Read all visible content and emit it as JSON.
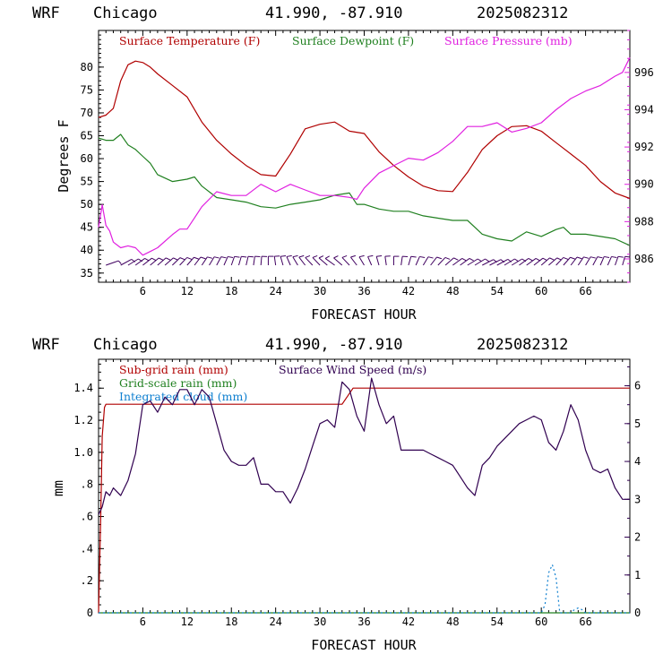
{
  "header": {
    "model": "WRF",
    "location": "Chicago",
    "coords": "41.990, -87.910",
    "run": "2025082312"
  },
  "colors": {
    "temperature": "#b00000",
    "dewpoint": "#208020",
    "pressure": "#e020e0",
    "wind_barbs": "#400060",
    "subgrid": "#b00000",
    "gridscale": "#208020",
    "cloud": "#1080d0",
    "windspeed": "#300050"
  },
  "chart_data": [
    {
      "type": "line",
      "xlabel": "FORECAST HOUR",
      "ylabel": "Degrees F",
      "x_ticks": [
        "6",
        "12",
        "18",
        "24",
        "30",
        "36",
        "42",
        "48",
        "54",
        "60",
        "66"
      ],
      "y_ticks": [
        "35",
        "40",
        "45",
        "50",
        "55",
        "60",
        "65",
        "70",
        "75",
        "80"
      ],
      "y2_ticks": [
        "986",
        "988",
        "990",
        "992",
        "994",
        "996"
      ],
      "xlim": [
        0,
        72
      ],
      "ylim": [
        33,
        88
      ],
      "y2lim": [
        984.75,
        998.25
      ],
      "legend": [
        "Surface Temperature (F)",
        "Surface Dewpoint (F)",
        "Surface Pressure (mb)"
      ],
      "series": [
        {
          "name": "Surface Temperature (F)",
          "axis": "left",
          "x": [
            0,
            1,
            2,
            3,
            4,
            5,
            6,
            7,
            8,
            10,
            12,
            14,
            16,
            18,
            20,
            22,
            24,
            26,
            28,
            30,
            32,
            34,
            36,
            38,
            40,
            42,
            44,
            46,
            48,
            50,
            52,
            54,
            56,
            58,
            60,
            62,
            64,
            66,
            68,
            70,
            72
          ],
          "y": [
            69,
            69.5,
            71,
            77,
            80.5,
            81.3,
            81,
            80,
            78.5,
            76,
            73.5,
            68,
            64,
            61,
            58.5,
            56.5,
            56.2,
            61,
            66.5,
            67.5,
            68,
            66,
            65.5,
            61.5,
            58.5,
            56,
            54,
            53,
            52.8,
            57,
            62,
            65,
            67,
            67.2,
            66,
            63.5,
            61,
            58.5,
            55,
            52.5,
            51.3
          ]
        },
        {
          "name": "Surface Dewpoint (F)",
          "axis": "left",
          "x": [
            0,
            1,
            2,
            3,
            4,
            5,
            6,
            7,
            8,
            10,
            12,
            13,
            14,
            16,
            18,
            20,
            22,
            24,
            26,
            28,
            30,
            32,
            34,
            35,
            36,
            38,
            40,
            42,
            44,
            46,
            48,
            50,
            52,
            54,
            56,
            58,
            60,
            62,
            63,
            64,
            66,
            68,
            70,
            72
          ],
          "y": [
            64.5,
            64,
            64,
            65.3,
            63,
            62,
            60.5,
            59,
            56.5,
            55,
            55.5,
            56,
            54,
            51.5,
            51,
            50.5,
            49.5,
            49.2,
            50,
            50.5,
            51,
            52,
            52.5,
            50,
            50,
            49,
            48.5,
            48.5,
            47.5,
            47,
            46.5,
            46.5,
            43.5,
            42.5,
            42,
            44,
            43,
            44.5,
            45,
            43.5,
            43.5,
            43,
            42.5,
            41
          ]
        },
        {
          "name": "Surface Pressure (mb)",
          "axis": "right",
          "x": [
            0,
            0.5,
            1,
            1.5,
            2,
            3,
            4,
            5,
            6,
            7,
            8,
            10,
            11,
            12,
            13,
            14,
            16,
            18,
            20,
            22,
            24,
            26,
            28,
            30,
            32,
            34,
            35,
            36,
            38,
            40,
            42,
            44,
            46,
            48,
            50,
            52,
            54,
            56,
            58,
            60,
            62,
            64,
            66,
            68,
            70,
            71,
            72
          ],
          "y": [
            987.7,
            988.9,
            987.8,
            987.5,
            986.9,
            986.6,
            986.7,
            986.6,
            986.2,
            986.4,
            986.6,
            987.3,
            987.6,
            987.6,
            988.2,
            988.8,
            989.6,
            989.4,
            989.4,
            990.0,
            989.6,
            990.0,
            989.7,
            989.4,
            989.4,
            989.3,
            989.2,
            989.8,
            990.6,
            991.0,
            991.4,
            991.3,
            991.7,
            992.3,
            993.1,
            993.1,
            993.3,
            992.8,
            993.0,
            993.3,
            994.0,
            994.6,
            995.0,
            995.3,
            995.8,
            996.0,
            996.8
          ]
        },
        {
          "name": "Wind barbs",
          "axis": "barbs",
          "x": [
            1,
            3,
            4,
            5,
            6,
            7,
            8,
            9,
            10,
            11,
            12,
            13,
            14,
            15,
            16,
            17,
            18,
            19,
            20,
            21,
            22,
            23,
            24,
            25,
            26,
            27,
            28,
            29,
            30,
            31,
            32,
            33,
            34,
            35,
            36,
            37,
            38,
            39,
            40,
            41,
            42,
            43,
            44,
            45,
            46,
            47,
            48,
            49,
            50,
            51,
            52,
            53,
            54,
            55,
            56,
            57,
            58,
            59,
            60,
            61,
            62,
            63,
            64,
            65,
            66,
            67,
            68,
            69,
            70,
            71
          ],
          "y": [
            60,
            48,
            45,
            40,
            38,
            36,
            35,
            35,
            32,
            30,
            28,
            25,
            22,
            20,
            18,
            15,
            12,
            10,
            8,
            5,
            3,
            0,
            355,
            350,
            345,
            340,
            335,
            330,
            330,
            325,
            320,
            325,
            330,
            335,
            340,
            345,
            350,
            355,
            0,
            5,
            10,
            15,
            20,
            25,
            30,
            35,
            40,
            40,
            45,
            45,
            50,
            50,
            48,
            45,
            45,
            40,
            40,
            38,
            35,
            35,
            30,
            28,
            25,
            22,
            20,
            18,
            15,
            15,
            12,
            10
          ]
        }
      ]
    },
    {
      "type": "line",
      "xlabel": "FORECAST HOUR",
      "ylabel": "mm",
      "x_ticks": [
        "6",
        "12",
        "18",
        "24",
        "30",
        "36",
        "42",
        "48",
        "54",
        "60",
        "66"
      ],
      "y_ticks": [
        "0",
        ".2",
        ".4",
        ".6",
        ".8",
        "1.0",
        "1.2",
        "1.4"
      ],
      "y2_ticks": [
        "0",
        "1",
        "2",
        "3",
        "4",
        "5",
        "6"
      ],
      "xlim": [
        0,
        72
      ],
      "ylim": [
        0,
        1.58
      ],
      "y2lim": [
        0,
        6.7
      ],
      "legend": [
        "Sub-grid rain (mm)",
        "Grid-scale rain (mm)",
        "Integrated cloud (mm)",
        "Surface Wind Speed (m/s)"
      ],
      "series": [
        {
          "name": "Sub-grid rain (mm)",
          "axis": "left",
          "x": [
            0,
            0.3,
            0.5,
            0.8,
            1.0,
            1.2,
            2.0,
            33.0,
            34.5,
            35.0,
            72
          ],
          "y": [
            0,
            0.62,
            1.1,
            1.28,
            1.3,
            1.3,
            1.3,
            1.3,
            1.4,
            1.4,
            1.4
          ]
        },
        {
          "name": "Grid-scale rain (mm)",
          "axis": "left",
          "x": [
            0,
            72
          ],
          "y": [
            0,
            0
          ]
        },
        {
          "name": "Integrated cloud (mm)",
          "axis": "left",
          "x": [
            0,
            60,
            60.5,
            61,
            61.5,
            62,
            62.5,
            63,
            64,
            64.5,
            65,
            65.5,
            66,
            72
          ],
          "y": [
            0,
            0,
            0.05,
            0.25,
            0.3,
            0.22,
            0.0,
            0,
            0,
            0.02,
            0.03,
            0.02,
            0,
            0
          ]
        },
        {
          "name": "Surface Wind Speed (m/s)",
          "axis": "right",
          "x": [
            0,
            0.5,
            1,
            1.5,
            2,
            3,
            4,
            5,
            6,
            7,
            8,
            9,
            10,
            11,
            12,
            13,
            14,
            15,
            16,
            17,
            18,
            19,
            20,
            21,
            22,
            23,
            24,
            25,
            26,
            27,
            28,
            29,
            30,
            31,
            32,
            33,
            34,
            35,
            36,
            37,
            38,
            39,
            40,
            41,
            42,
            43,
            44,
            45,
            46,
            47,
            48,
            49,
            50,
            51,
            52,
            53,
            54,
            55,
            56,
            57,
            58,
            59,
            60,
            61,
            62,
            63,
            64,
            65,
            66,
            67,
            68,
            69,
            70,
            71,
            72
          ],
          "y": [
            2.6,
            2.8,
            3.2,
            3.1,
            3.3,
            3.1,
            3.5,
            4.2,
            5.5,
            5.6,
            5.3,
            5.7,
            5.5,
            5.9,
            5.9,
            5.5,
            5.9,
            5.7,
            5.0,
            4.3,
            4.0,
            3.9,
            3.9,
            4.1,
            3.4,
            3.4,
            3.2,
            3.2,
            2.9,
            3.3,
            3.8,
            4.4,
            5.0,
            5.1,
            4.9,
            6.1,
            5.9,
            5.2,
            4.8,
            6.2,
            5.5,
            5.0,
            5.2,
            4.3,
            4.3,
            4.3,
            4.3,
            4.2,
            4.1,
            4.0,
            3.9,
            3.6,
            3.3,
            3.1,
            3.9,
            4.1,
            4.4,
            4.6,
            4.8,
            5.0,
            5.1,
            5.2,
            5.1,
            4.5,
            4.3,
            4.8,
            5.5,
            5.1,
            4.3,
            3.8,
            3.7,
            3.8,
            3.3,
            3.0,
            3.0
          ]
        }
      ]
    }
  ]
}
